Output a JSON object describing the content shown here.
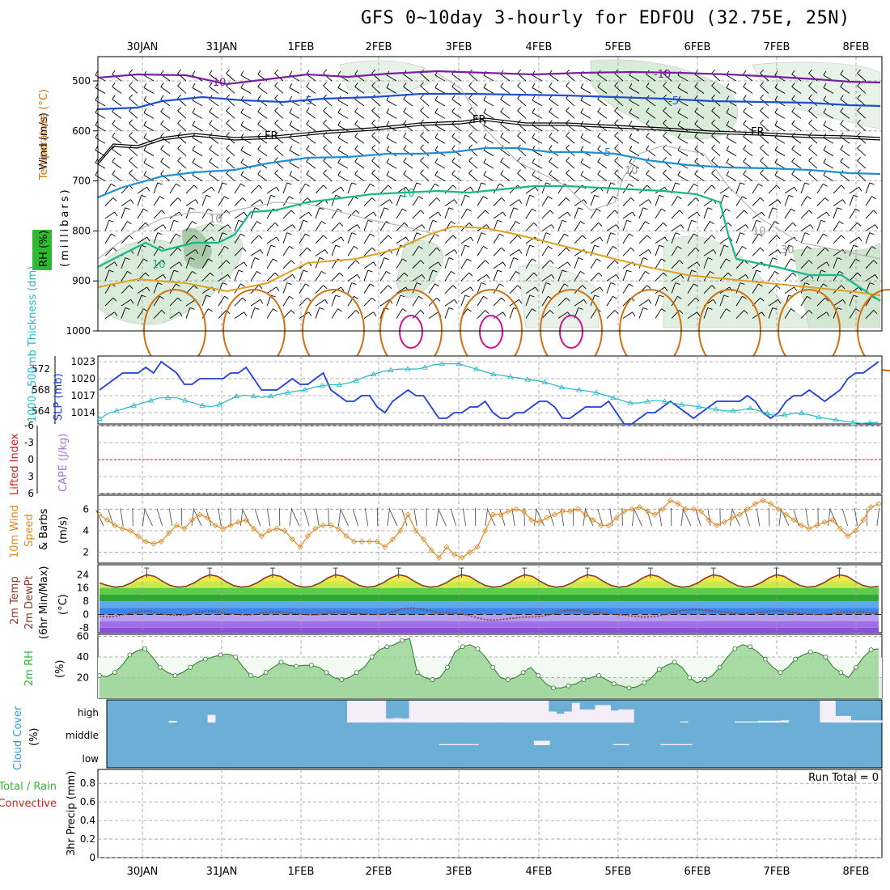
{
  "title": "GFS 0~10day 3-hourly for EDFOU (32.75E, 25N)",
  "dates": [
    "30JAN",
    "31JAN",
    "1FEB",
    "2FEB",
    "3FEB",
    "4FEB",
    "5FEB",
    "6FEB",
    "7FEB",
    "8FEB"
  ],
  "colors": {
    "frame": "#000000",
    "grid": "#999999",
    "temp_minus10": "#7b1fa2",
    "temp_minus5": "#1f4fd1",
    "temp_fr": "#000000",
    "temp_5": "#1e90d6",
    "temp_10": "#16b989",
    "temp_15": "#e0a020",
    "temp_20": "#d07010",
    "temp_25": "#d01090",
    "slp": "#1f3fd6",
    "thickness": "#22b6c6",
    "lifted_index": "#d02020",
    "wind_speed": "#e08820",
    "temp_line": "#8b3a2a",
    "dewpoint_line": "#8b3a2a",
    "rh_fill": "#68b860",
    "cloud_bg": "#6baed6",
    "cloud_fill": "#f3eef7"
  },
  "panels": {
    "upper_air": {
      "label_wind": "Wind (m/s)",
      "label_temperature": "Temperature (°C)",
      "label_rh": "RH (%)",
      "label_millibars": "(millibars)",
      "y_ticks": [
        "500",
        "600",
        "700",
        "800",
        "900",
        "1000"
      ],
      "contour_labels": {
        "minus10a": "-10",
        "minus10b": "-10",
        "minus5a": "-5",
        "minus5b": "-5",
        "fr1": "FR",
        "fr2": "FR",
        "fr3": "FR",
        "plus5": "5",
        "plus10a": "10",
        "plus10b": "10",
        "rh10a": "10",
        "rh10b": "10",
        "rh10c": "10",
        "rh30": "30"
      }
    },
    "slp_thickness": {
      "label_thickness": "1000~500mb Thickness (dm)",
      "label_slp": "SLP (mb)",
      "left_ticks": [
        "572",
        "568",
        "564"
      ],
      "right_ticks": [
        "1023",
        "1020",
        "1017",
        "1014"
      ]
    },
    "lifted_cape": {
      "label_lifted": "Lifted Index",
      "label_cape": "CAPE (J/kg)",
      "y_ticks": [
        "-6",
        "-3",
        "0",
        "3",
        "6"
      ]
    },
    "wind10m": {
      "label_a": "10m Wind",
      "label_b": "Speed",
      "label_c": "& Barbs",
      "label_units": "(m/s)",
      "y_ticks": [
        "6",
        "4",
        "2"
      ]
    },
    "temp2m": {
      "label_a": "2m Temp",
      "label_b": "2m DewPt",
      "label_c": "(6hr Min/Max)",
      "label_units": "(°C)",
      "y_ticks": [
        "24",
        "16",
        "8",
        "0",
        "-8"
      ]
    },
    "rh2m": {
      "label": "2m RH",
      "label_units": "(%)",
      "y_ticks": [
        "60",
        "40",
        "20"
      ]
    },
    "cloud": {
      "label": "Cloud Cover",
      "label_units": "(%)",
      "levels": [
        "high",
        "middle",
        "low"
      ]
    },
    "precip": {
      "label_total": "Total / Rain",
      "label_conv": "Convective",
      "label_axis": "3hr Precip (mm)",
      "run_total": "Run Total = 0",
      "y_ticks": [
        "0.8",
        "0.6",
        "0.4",
        "0.2",
        "0"
      ]
    }
  },
  "chart_data": [
    {
      "type": "line",
      "title": "Sea level pressure",
      "ylabel": "SLP (mb)",
      "ylim": [
        1012,
        1024
      ],
      "x_start": "29JAN 15Z",
      "x_step_hours": 3,
      "values": [
        1018,
        1019,
        1020,
        1021,
        1021,
        1021,
        1022,
        1021,
        1023,
        1022,
        1021,
        1019,
        1019,
        1020,
        1020,
        1020,
        1020,
        1021,
        1021,
        1022,
        1020,
        1018,
        1018,
        1018,
        1019,
        1020,
        1019,
        1019,
        1020,
        1021,
        1018,
        1017,
        1016,
        1016,
        1017,
        1017,
        1015,
        1014,
        1016,
        1017,
        1018,
        1017,
        1017,
        1015,
        1013,
        1013,
        1014,
        1014,
        1015,
        1015,
        1016,
        1014,
        1013,
        1013,
        1014,
        1014,
        1015,
        1016,
        1016,
        1015,
        1013,
        1013,
        1014,
        1015,
        1015,
        1015,
        1016,
        1014,
        1012,
        1012,
        1013,
        1014,
        1014,
        1015,
        1016,
        1015,
        1014,
        1013,
        1014,
        1015,
        1016,
        1016,
        1016,
        1016,
        1017,
        1016,
        1014,
        1013,
        1014,
        1016,
        1017,
        1017,
        1018,
        1017,
        1016,
        1017,
        1018,
        1020,
        1021,
        1021,
        1022,
        1023
      ]
    },
    {
      "type": "line",
      "title": "1000-500mb thickness",
      "ylabel": "Thickness (dm)",
      "ylim": [
        561.5,
        574.5
      ],
      "x_start": "29JAN 15Z",
      "x_step_hours": 3,
      "values": [
        562.5,
        563.5,
        564,
        564.5,
        565,
        565.5,
        566,
        566.5,
        566.5,
        566.5,
        566,
        565.5,
        565,
        564.8,
        565.2,
        566,
        566.8,
        567,
        566.8,
        566.6,
        566.8,
        567.2,
        567.5,
        567.8,
        568,
        568.5,
        568.8,
        569,
        569,
        569.3,
        569.8,
        570.5,
        571,
        571.5,
        571.8,
        572,
        572,
        572,
        572.3,
        572.8,
        573,
        573,
        573,
        572.5,
        572,
        571.5,
        571,
        570.8,
        570.5,
        570.3,
        570,
        569.8,
        569.5,
        569,
        568.5,
        568.2,
        568,
        567.8,
        567.5,
        567,
        566.5,
        566,
        565.5,
        565.5,
        565.8,
        566,
        565.8,
        565.5,
        565.2,
        565,
        564.8,
        564.5,
        564.3,
        564,
        564,
        564.2,
        564.5,
        564,
        563.5,
        563,
        563.2,
        563.5,
        563.6,
        563.2,
        562.8,
        562.5,
        562.3,
        562,
        561.8,
        561.6,
        561.7,
        561.8
      ]
    },
    {
      "type": "line",
      "title": "10m wind speed",
      "ylabel": "(m/s)",
      "ylim": [
        1,
        7.3
      ],
      "x_start": "29JAN 15Z",
      "x_step_hours": 3,
      "values": [
        5.5,
        5,
        4.5,
        4.2,
        4,
        3.5,
        3,
        2.8,
        3,
        3.8,
        4.5,
        4.2,
        5,
        5.5,
        5.2,
        4.5,
        4.2,
        4.5,
        4.8,
        5,
        4.2,
        3.5,
        4,
        4.2,
        4,
        3.2,
        2.5,
        3.5,
        4.2,
        4.5,
        4.5,
        4.2,
        3.5,
        3,
        3,
        3,
        3,
        2.5,
        3.2,
        4,
        5.5,
        4,
        3.2,
        2.2,
        1.5,
        2.5,
        1.8,
        1.5,
        2,
        2.5,
        4,
        5.5,
        5.5,
        5.8,
        6,
        5.8,
        5,
        4.8,
        5.2,
        5.5,
        5.8,
        5.8,
        6,
        5.5,
        5,
        4.5,
        4.5,
        5.2,
        5.8,
        6,
        6.2,
        5.8,
        5.5,
        6,
        6.8,
        6.5,
        6,
        6,
        5.8,
        5,
        4.5,
        4.8,
        5.2,
        5.5,
        6,
        6.5,
        6.8,
        6.5,
        6,
        5.5,
        5,
        4.5,
        4.2,
        4.5,
        4.8,
        5,
        4.2,
        3.5,
        4,
        5,
        6.2,
        6.5
      ]
    },
    {
      "type": "line",
      "title": "2m temperature",
      "ylabel": "(°C)",
      "ylim": [
        -11,
        30
      ],
      "x_start": "29JAN 15Z",
      "x_step_hours": 3,
      "values": [
        19,
        17.5,
        16.5,
        17,
        19,
        22,
        24,
        23,
        20,
        17.5,
        16.5,
        17,
        19,
        22,
        24,
        23,
        20,
        17.5,
        16.5,
        17,
        19,
        22,
        24,
        23,
        20,
        17.5,
        16.5,
        17,
        19,
        22,
        24,
        23,
        20,
        17.5,
        16.5,
        17,
        19,
        22,
        24,
        23,
        20,
        17.5,
        16.5,
        17,
        19,
        22,
        24,
        23,
        20,
        17.5,
        16.5,
        17,
        19,
        22,
        24,
        23,
        20,
        17.5,
        16.5,
        17,
        19,
        22,
        24,
        23,
        20,
        17.5,
        16.5,
        17,
        19,
        22,
        24,
        23,
        20,
        17.5,
        16.5,
        17,
        19,
        22,
        24,
        23,
        20,
        17.5,
        16.5,
        17,
        19,
        22,
        24,
        23,
        20,
        17.5,
        16.5,
        17,
        19,
        22,
        24,
        23,
        20,
        17.5,
        16.5,
        17
      ]
    },
    {
      "type": "line",
      "title": "2m dew point",
      "ylabel": "(°C)",
      "ylim": [
        -11,
        30
      ],
      "x_start": "29JAN 15Z",
      "x_step_hours": 3,
      "values": [
        -1,
        -1.5,
        -1,
        0,
        1,
        2,
        2,
        1,
        0,
        -0.5,
        -0.5,
        0,
        1.5,
        2,
        2,
        1,
        0.5,
        0,
        -0.3,
        0,
        1,
        1.5,
        1.5,
        1,
        0.5,
        0,
        -0.3,
        0,
        1,
        1.5,
        1.5,
        1,
        0.5,
        0,
        0,
        0.5,
        2,
        3.5,
        4,
        3.5,
        2.5,
        1.5,
        1,
        1,
        0.5,
        -0.5,
        -2,
        -3,
        -3.5,
        -3,
        -2.5,
        -2,
        -1.5,
        -1.5,
        -1,
        0,
        1.5,
        2.5,
        2.5,
        2,
        1.5,
        1,
        0.5,
        0,
        -0.5,
        -1,
        -1.5,
        -1.5,
        -1,
        0,
        1.5,
        2.5,
        3,
        3,
        2.5,
        2,
        1.5,
        1,
        0.5,
        0.5,
        1,
        1.5,
        2,
        2,
        1.5,
        1,
        0.5,
        0,
        0,
        0.5,
        1,
        1.5,
        1.5,
        1.5,
        1,
        1
      ]
    },
    {
      "type": "area",
      "title": "2m relative humidity",
      "ylabel": "(%)",
      "ylim": [
        0,
        62
      ],
      "x_start": "29JAN 15Z",
      "x_step_hours": 3,
      "values": [
        22,
        21,
        25,
        32,
        42,
        46,
        48,
        40,
        30,
        25,
        22,
        25,
        30,
        35,
        38,
        40,
        42,
        43,
        40,
        30,
        22,
        20,
        25,
        30,
        35,
        32,
        31,
        32,
        32,
        30,
        25,
        20,
        18,
        20,
        25,
        30,
        40,
        47,
        50,
        52,
        56,
        58,
        25,
        20,
        18,
        20,
        30,
        45,
        50,
        52,
        48,
        40,
        30,
        20,
        18,
        20,
        25,
        30,
        22,
        14,
        10,
        10,
        12,
        14,
        18,
        20,
        22,
        18,
        14,
        12,
        10,
        11,
        15,
        20,
        28,
        32,
        35,
        30,
        20,
        15,
        18,
        22,
        30,
        40,
        48,
        52,
        50,
        45,
        38,
        30,
        25,
        30,
        38,
        42,
        45,
        44,
        40,
        30,
        25,
        20,
        30,
        40,
        47,
        48
      ]
    },
    {
      "type": "heatmap",
      "title": "Cloud cover",
      "ylabel": "(%)",
      "rows": [
        "high",
        "middle",
        "low"
      ],
      "x_start": "29JAN 15Z",
      "x_step_hours": 3,
      "high": [
        0,
        0,
        0,
        0,
        0,
        0,
        0,
        0,
        8,
        0,
        0,
        0,
        0,
        35,
        0,
        0,
        0,
        0,
        0,
        0,
        0,
        0,
        0,
        0,
        0,
        0,
        0,
        0,
        0,
        0,
        0,
        100,
        100,
        100,
        100,
        100,
        18,
        20,
        18,
        100,
        100,
        100,
        100,
        100,
        100,
        100,
        100,
        100,
        100,
        100,
        100,
        100,
        100,
        100,
        100,
        100,
        100,
        50,
        40,
        50,
        90,
        60,
        60,
        80,
        80,
        55,
        60,
        60,
        0,
        0,
        0,
        0,
        0,
        0,
        5,
        0,
        0,
        0,
        0,
        0,
        0,
        5,
        5,
        5,
        8,
        8,
        8,
        10,
        0,
        0,
        0,
        0,
        100,
        100,
        30,
        30,
        10,
        10,
        10,
        10
      ],
      "middle": [
        0,
        0,
        0,
        0,
        0,
        0,
        0,
        0,
        0,
        0,
        0,
        0,
        0,
        0,
        0,
        0,
        0,
        0,
        0,
        0,
        0,
        0,
        0,
        0,
        0,
        0,
        0,
        0,
        0,
        0,
        0,
        0,
        0,
        0,
        0,
        0,
        0,
        0,
        0,
        0,
        0,
        0,
        5,
        5,
        5,
        5,
        5,
        0,
        0,
        0,
        0,
        0,
        0,
        0,
        20,
        20,
        0,
        0,
        0,
        0,
        0,
        0,
        0,
        0,
        5,
        5,
        0,
        0,
        0,
        0,
        5,
        5,
        5,
        5,
        0,
        0,
        0,
        0,
        0,
        0,
        0,
        0,
        0,
        0,
        0,
        0,
        0,
        0,
        0,
        0,
        0,
        0,
        0,
        0,
        0,
        0,
        0,
        0
      ],
      "low": [
        0,
        0,
        0,
        0,
        0,
        0,
        0,
        0,
        0,
        0,
        0,
        0,
        0,
        0,
        0,
        0,
        0,
        0,
        0,
        0,
        0,
        0,
        0,
        0,
        0,
        0,
        0,
        0,
        0,
        0,
        0,
        0,
        0,
        0,
        0,
        0,
        0,
        0,
        0,
        0,
        0,
        0,
        0,
        0,
        0,
        0,
        0,
        0,
        0,
        0,
        0,
        0,
        0,
        0,
        0,
        0,
        0,
        0,
        0,
        0,
        0,
        0,
        0,
        0,
        0,
        0,
        0,
        0,
        0,
        0,
        0,
        0,
        0,
        0,
        0,
        0,
        0,
        0,
        0,
        0,
        0,
        0,
        0,
        0,
        0,
        0,
        0,
        0,
        0,
        0,
        0,
        0,
        0,
        0,
        0,
        0,
        0,
        0
      ]
    },
    {
      "type": "bar",
      "title": "3hr precipitation",
      "ylabel": "3hr Precip (mm)",
      "ylim": [
        0,
        0.95
      ],
      "values": [],
      "run_total": 0
    }
  ]
}
